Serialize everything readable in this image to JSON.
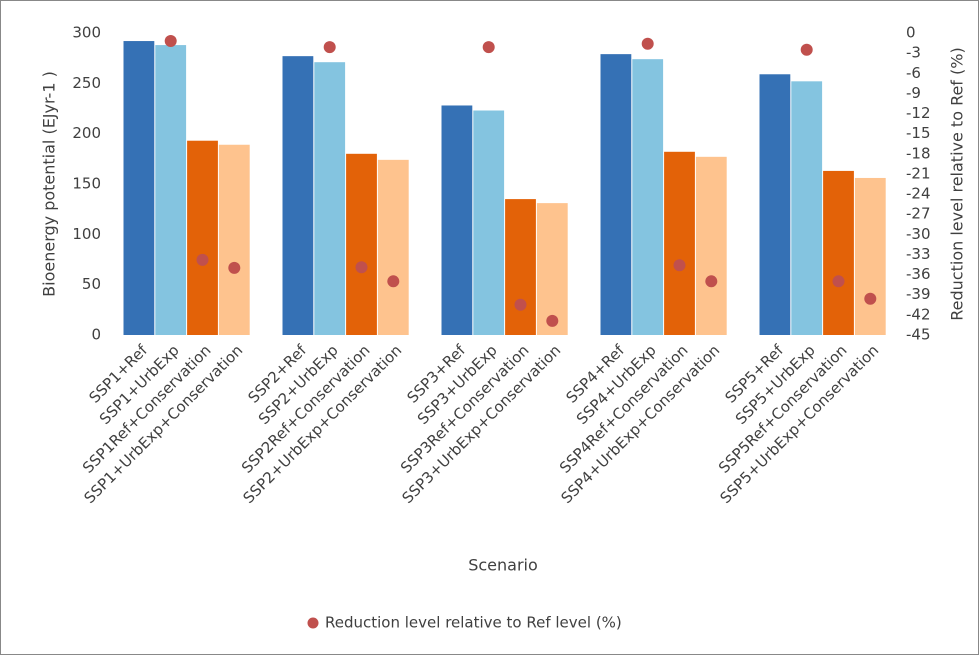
{
  "chart_data": {
    "type": "bar",
    "x_label": "Scenario",
    "y_label": "Bioenergy potential (EJyr-1 )",
    "y2_label": "Reduction level relative to Ref (%)",
    "categories": [
      "SSP1+Ref",
      "SSP1+UrbExp",
      "SSP1Ref+Conservation",
      "SSP1+UrbExp+Conservation",
      null,
      "SSP2+Ref",
      "SSP2+UrbExp",
      "SSP2Ref+Conservation",
      "SSP2+UrbExp+Conservation",
      null,
      "SSP3+Ref",
      "SSP3+UrbExp",
      "SSP3Ref+Conservation",
      "SSP3+UrbExp+Conservation",
      null,
      "SSP4+Ref",
      "SSP4+UrbExp",
      "SSP4Ref+Conservation",
      "SSP4+UrbExp+Conservation",
      null,
      "SSP5+Ref",
      "SSP5+UrbExp",
      "SSP5Ref+Conservation",
      "SSP5+UrbExp+Conservation"
    ],
    "values": [
      292,
      288,
      193,
      189,
      null,
      277,
      271,
      180,
      174,
      null,
      228,
      223,
      135,
      131,
      null,
      279,
      274,
      182,
      177,
      null,
      259,
      252,
      163,
      156
    ],
    "colors": [
      "#3571b5",
      "#84c4e0",
      "#e36208",
      "#fec38e",
      null,
      "#3571b5",
      "#84c4e0",
      "#e36208",
      "#fec38e",
      null,
      "#3571b5",
      "#84c4e0",
      "#e36208",
      "#fec38e",
      null,
      "#3571b5",
      "#84c4e0",
      "#e36208",
      "#fec38e",
      null,
      "#3571b5",
      "#84c4e0",
      "#e36208",
      "#fec38e"
    ],
    "series": [
      {
        "name": "Reduction level relative to Ref level (%)",
        "color": "#c0504d",
        "axis": "y2",
        "values": [
          null,
          -1.2,
          -33.8,
          -35.0,
          null,
          null,
          -2.1,
          -34.9,
          -37.0,
          null,
          null,
          -2.1,
          -40.5,
          -42.9,
          null,
          null,
          -1.6,
          -34.6,
          -37.0,
          null,
          null,
          -2.5,
          -37.0,
          -39.6
        ]
      }
    ],
    "ylim": [
      0,
      300
    ],
    "yticks": [
      0,
      50,
      100,
      150,
      200,
      250,
      300
    ],
    "y2lim": [
      -45,
      0
    ],
    "y2ticks": [
      0,
      -3,
      -6,
      -9,
      -12,
      -15,
      -18,
      -21,
      -24,
      -27,
      -30,
      -33,
      -36,
      -39,
      -42,
      -45
    ],
    "legend": "bottom"
  }
}
